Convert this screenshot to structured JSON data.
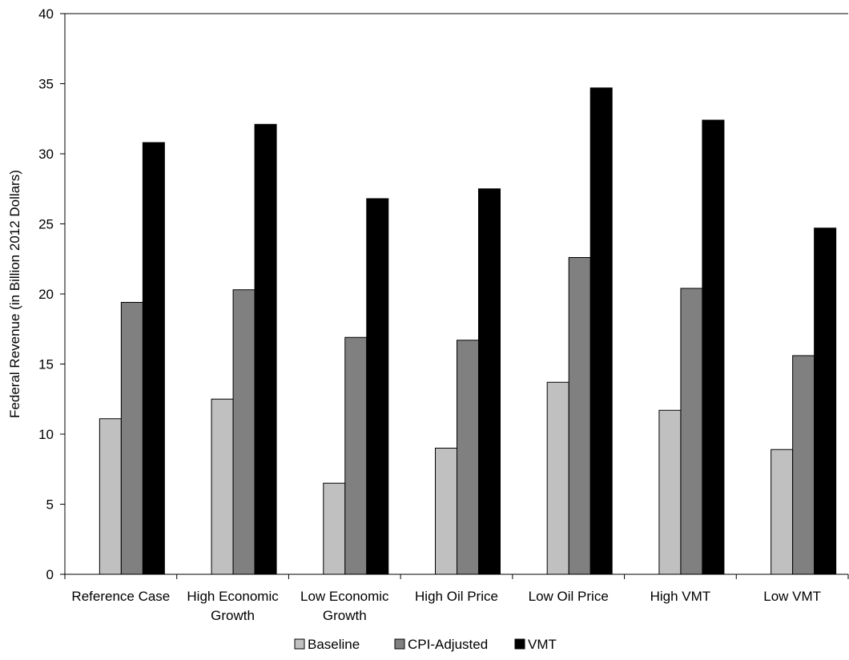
{
  "chart_data": {
    "type": "bar",
    "title": "",
    "xlabel": "",
    "ylabel": "Federal Revenue (in Billion 2012 Dollars)",
    "ylim": [
      0,
      40
    ],
    "yticks": [
      0,
      5,
      10,
      15,
      20,
      25,
      30,
      35,
      40
    ],
    "grid": false,
    "legend_position": "bottom",
    "categories": [
      [
        "Reference Case"
      ],
      [
        "High Economic",
        "Growth"
      ],
      [
        "Low Economic",
        "Growth"
      ],
      [
        "High Oil Price"
      ],
      [
        "Low Oil Price"
      ],
      [
        "High VMT"
      ],
      [
        "Low VMT"
      ]
    ],
    "series": [
      {
        "name": "Baseline",
        "color": "#c0c0c0",
        "values": [
          11.1,
          12.5,
          6.5,
          9.0,
          13.7,
          11.7,
          8.9
        ]
      },
      {
        "name": "CPI-Adjusted",
        "color": "#808080",
        "values": [
          19.4,
          20.3,
          16.9,
          16.7,
          22.6,
          20.4,
          15.6
        ]
      },
      {
        "name": "VMT",
        "color": "#000000",
        "values": [
          30.8,
          32.1,
          26.8,
          27.5,
          34.7,
          32.4,
          24.7
        ]
      }
    ]
  }
}
